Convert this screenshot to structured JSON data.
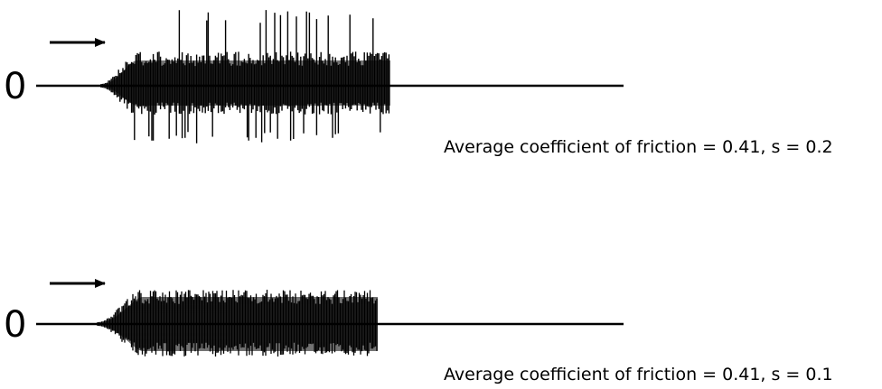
{
  "chart_data": [
    {
      "type": "line",
      "title": "",
      "zero_label": "0",
      "direction": "arrow-right",
      "caption": "Average coefficient of friction = 0.41, s = 0.2",
      "signal_color": "#000000"
    },
    {
      "type": "line",
      "title": "",
      "zero_label": "0",
      "direction": "arrow-right",
      "caption": "Average coefficient of friction = 0.41, s = 0.1",
      "signal_color": "#000000"
    }
  ]
}
